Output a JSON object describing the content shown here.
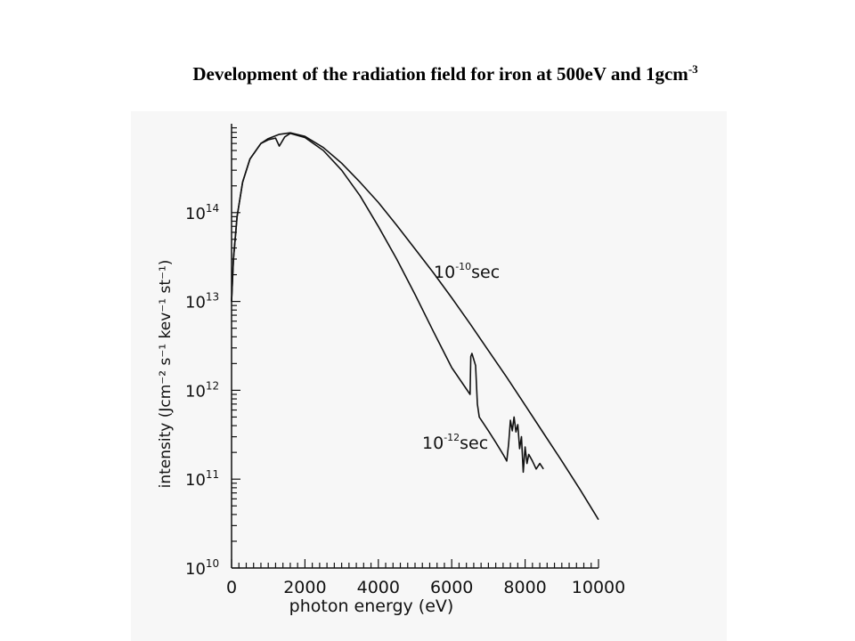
{
  "slide": {
    "title_main": "Development of the radiation field for iron at 500eV and 1gcm",
    "title_sup": "-3"
  },
  "chart_data": {
    "type": "line",
    "title": "Development of the radiation field for iron at 500eV and 1gcm-3",
    "xlabel": "photon energy (eV)",
    "ylabel": "intensity (Jcm⁻² s⁻¹ kev⁻¹ st⁻¹)",
    "xlim": [
      0,
      10000
    ],
    "ylim": [
      10000000000.0,
      1000000000000000.0
    ],
    "yscale": "log",
    "x_ticks": [
      "0",
      "2000",
      "4000",
      "6000",
      "8000",
      "10000"
    ],
    "y_ticks": [
      {
        "base": "10",
        "exp": "10"
      },
      {
        "base": "10",
        "exp": "11"
      },
      {
        "base": "10",
        "exp": "12"
      },
      {
        "base": "10",
        "exp": "13"
      },
      {
        "base": "10",
        "exp": "14"
      }
    ],
    "annotations": [
      {
        "base": "10",
        "exp": "-10",
        "unit": "sec"
      },
      {
        "base": "10",
        "exp": "-12",
        "unit": "sec"
      }
    ],
    "series": [
      {
        "x": [
          0,
          50,
          150,
          300,
          500,
          800,
          1000,
          1300,
          1600,
          2000,
          2500,
          3000,
          3500,
          4000,
          4500,
          5000,
          5500,
          6000,
          6500,
          7000,
          7500,
          8000,
          8500,
          9000,
          9500,
          10000
        ],
        "y": [
          10000000000000.0,
          30000000000000.0,
          90000000000000.0,
          220000000000000.0,
          400000000000000.0,
          600000000000000.0,
          680000000000000.0,
          760000000000000.0,
          790000000000000.0,
          720000000000000.0,
          540000000000000.0,
          360000000000000.0,
          220000000000000.0,
          130000000000000.0,
          72000000000000.0,
          39000000000000.0,
          21000000000000.0,
          11000000000000.0,
          5600000000000.0,
          2800000000000.0,
          1400000000000.0,
          680000000000.0,
          330000000000.0,
          160000000000.0,
          76000000000.0,
          35000000000.0
        ]
      },
      {
        "x": [
          0,
          50,
          150,
          300,
          500,
          800,
          1000,
          1200,
          1300,
          1450,
          1600,
          2000,
          2500,
          3000,
          3500,
          4000,
          4500,
          5000,
          5500,
          6000,
          6500,
          6520,
          6550,
          6650,
          6700,
          6750,
          7000,
          7200,
          7400,
          7500,
          7550,
          7600,
          7650,
          7700,
          7750,
          7800,
          7850,
          7900,
          7950,
          8000,
          8050,
          8100,
          8200,
          8300,
          8400,
          8500
        ],
        "y": [
          10000000000000.0,
          30000000000000.0,
          90000000000000.0,
          220000000000000.0,
          400000000000000.0,
          600000000000000.0,
          660000000000000.0,
          690000000000000.0,
          560000000000000.0,
          710000000000000.0,
          780000000000000.0,
          700000000000000.0,
          500000000000000.0,
          300000000000000.0,
          155000000000000.0,
          70000000000000.0,
          30000000000000.0,
          12000000000000.0,
          4600000000000.0,
          1800000000000.0,
          900000000000.0,
          2400000000000.0,
          2600000000000.0,
          1900000000000.0,
          700000000000.0,
          500000000000.0,
          350000000000.0,
          260000000000.0,
          190000000000.0,
          160000000000.0,
          250000000000.0,
          460000000000.0,
          350000000000.0,
          500000000000.0,
          340000000000.0,
          410000000000.0,
          220000000000.0,
          300000000000.0,
          120000000000.0,
          230000000000.0,
          150000000000.0,
          190000000000.0,
          160000000000.0,
          130000000000.0,
          150000000000.0,
          130000000000.0
        ]
      }
    ]
  }
}
